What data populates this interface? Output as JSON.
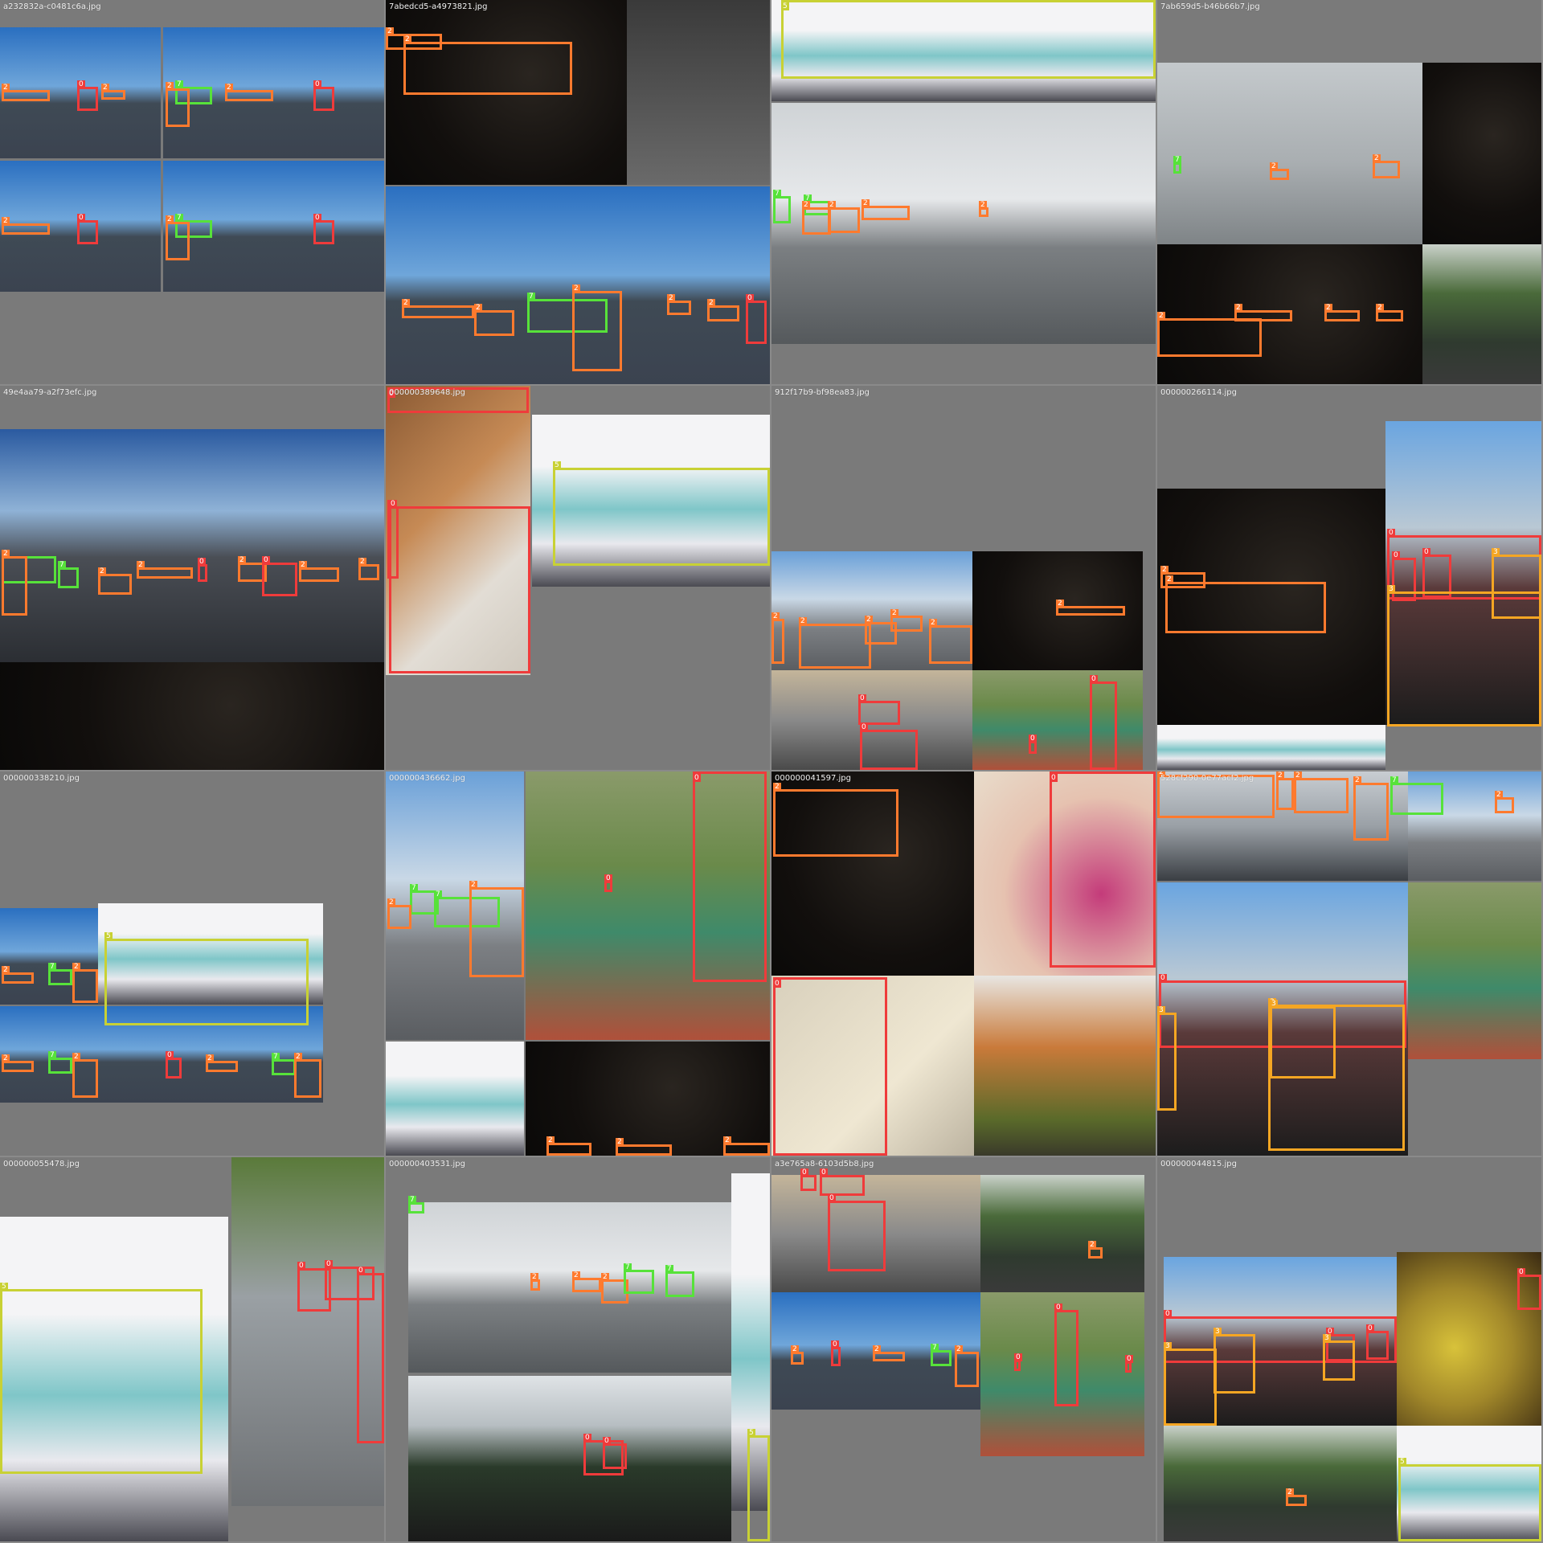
{
  "tiles": [
    {
      "filename": "a232832a-c0481c6a.jpg"
    },
    {
      "filename": "7abedcd5-a4973821.jpg"
    },
    {
      "filename": ""
    },
    {
      "filename": "7ab659d5-b46b66b7.jpg"
    },
    {
      "filename": "49e4aa79-a2f73efc.jpg"
    },
    {
      "filename": "000000389648.jpg"
    },
    {
      "filename": "912f17b9-bf98ea83.jpg"
    },
    {
      "filename": "000000266114.jpg"
    },
    {
      "filename": "000000338210.jpg"
    },
    {
      "filename": "000000436662.jpg"
    },
    {
      "filename": "000000041597.jpg"
    },
    {
      "filename": "528cf290-0e77acf2.jpg"
    },
    {
      "filename": "000000055478.jpg"
    },
    {
      "filename": "000000403531.jpg"
    },
    {
      "filename": "a3e765a8-6103d5b8.jpg"
    },
    {
      "filename": "000000044815.jpg"
    }
  ],
  "class_labels": {
    "person": "0",
    "car": "2",
    "motorcycle": "3",
    "bus": "5",
    "truck": "7"
  },
  "class_colors": {
    "0": "#ef3b3b",
    "2": "#ff7a2e",
    "3": "#f5a623",
    "5": "#c8d134",
    "7": "#57e23a"
  }
}
